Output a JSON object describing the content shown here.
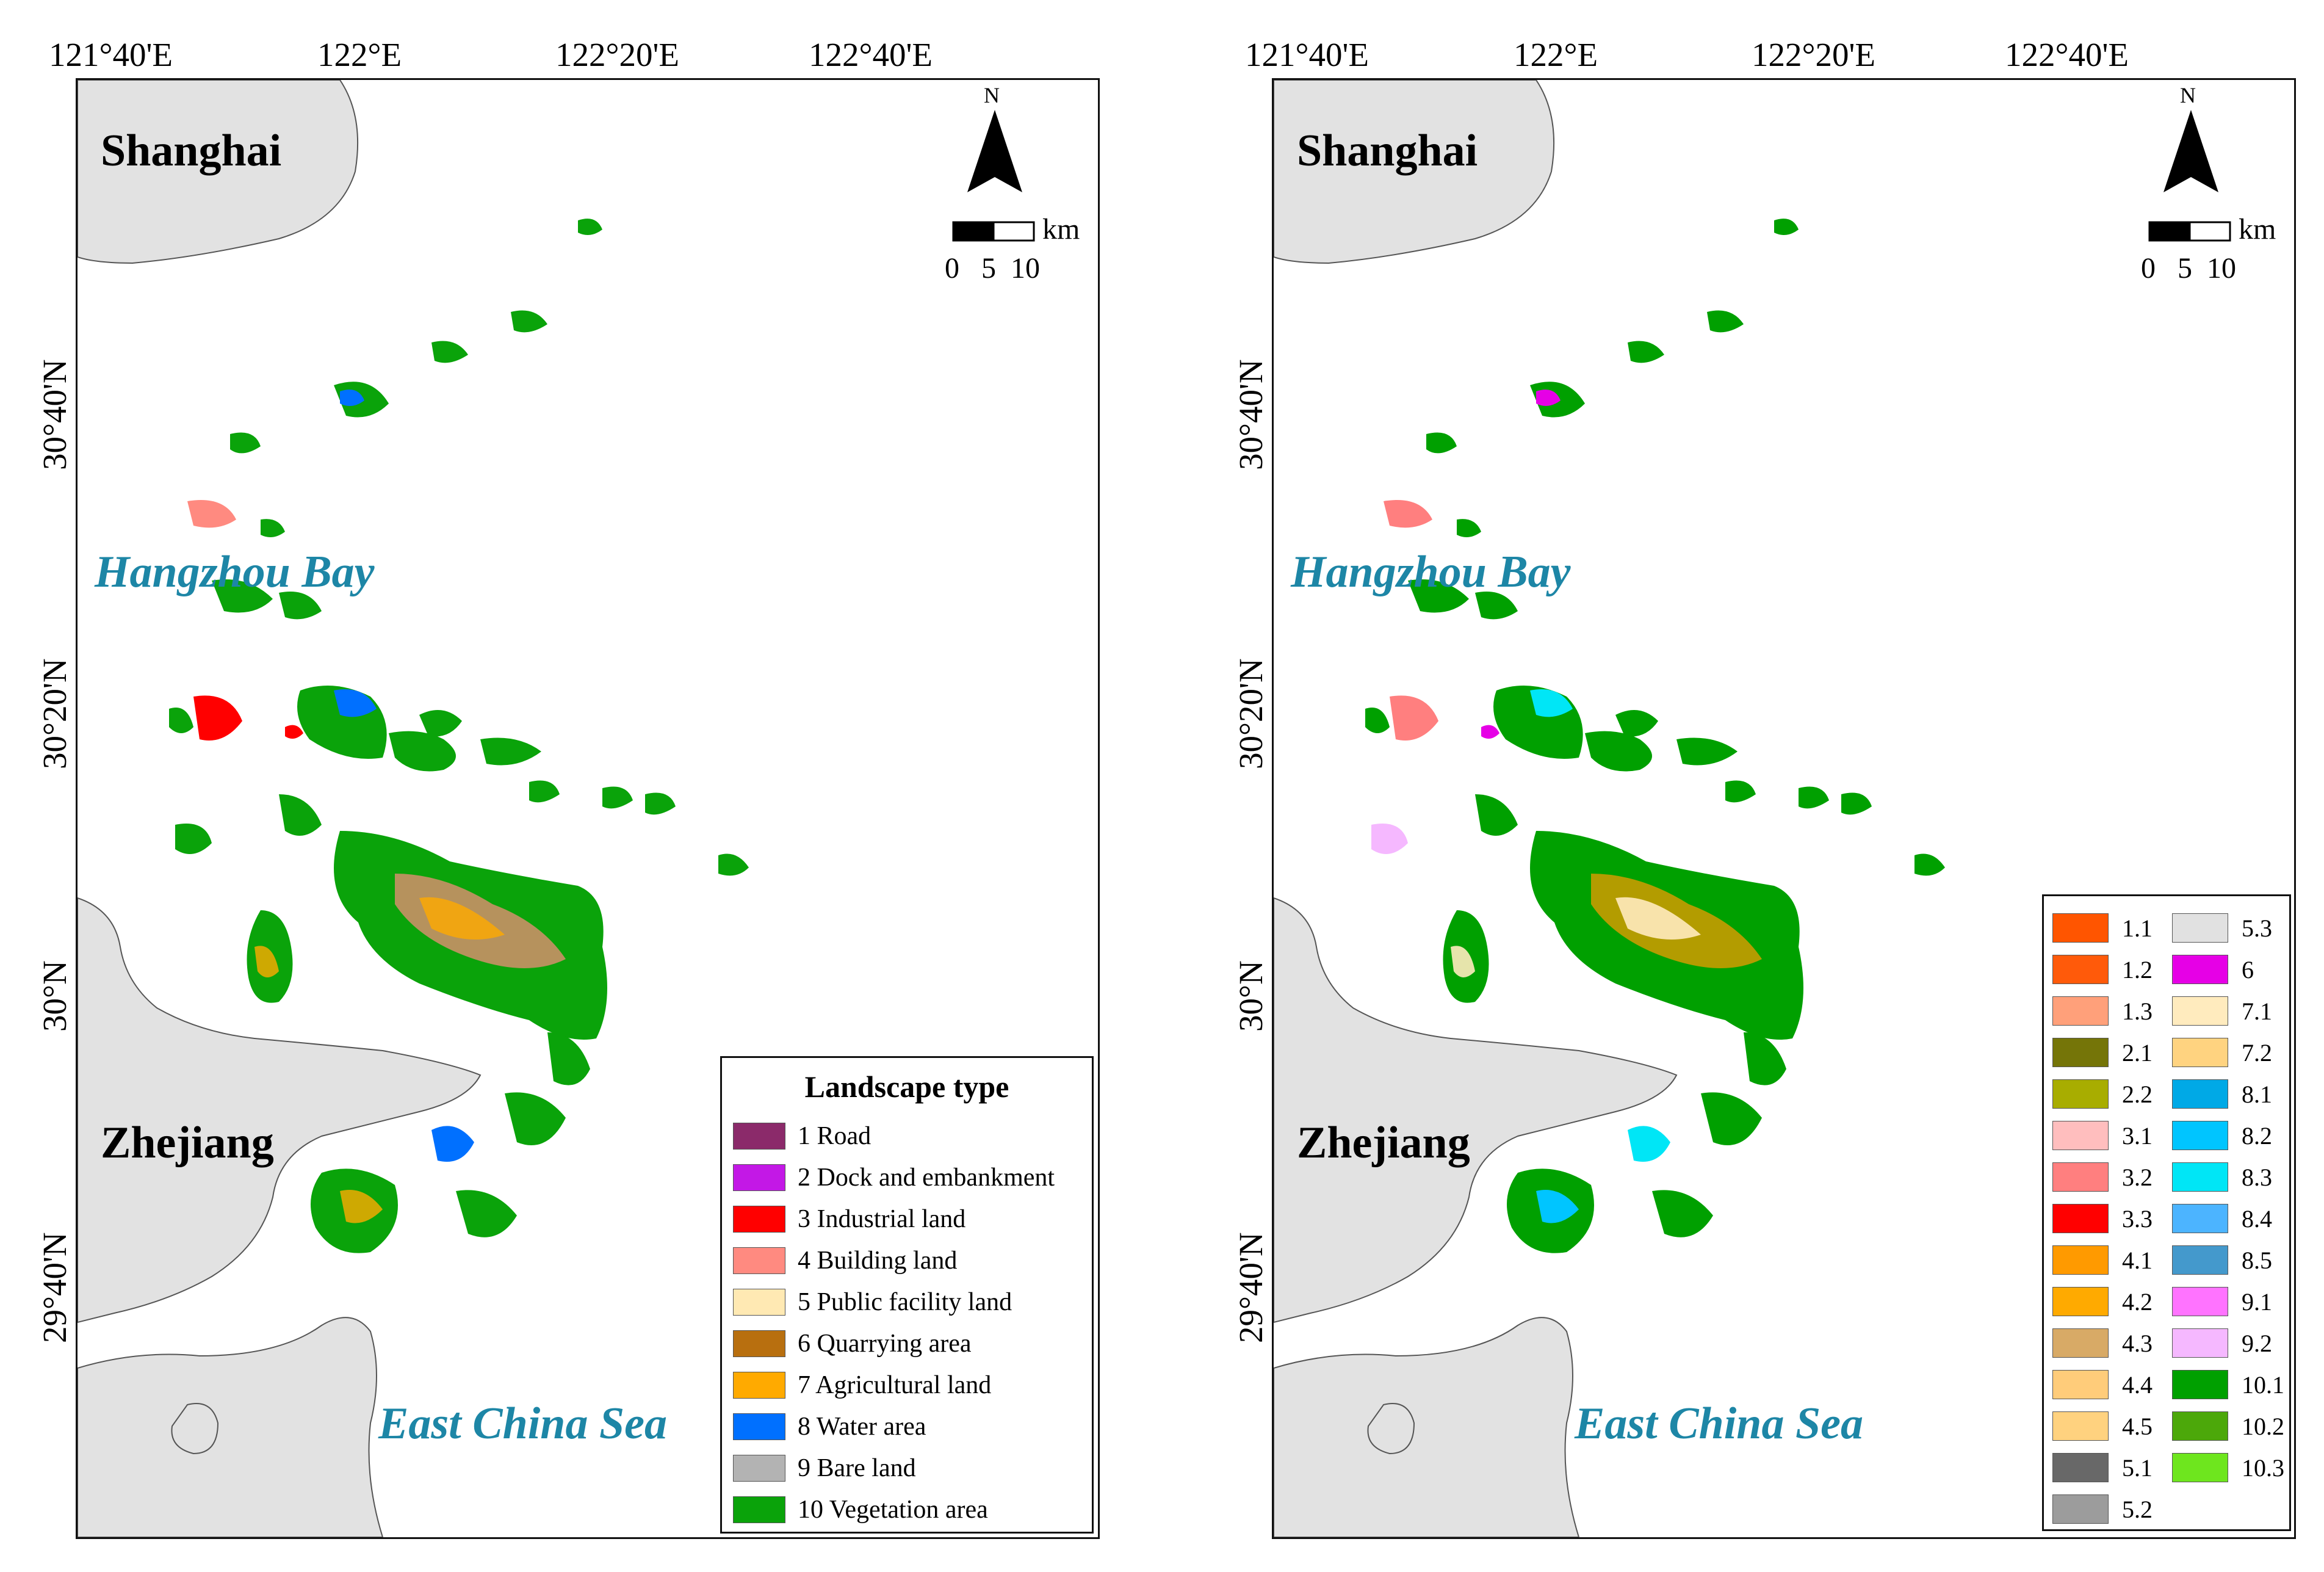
{
  "axes": {
    "lon_labels": [
      "121°40'E",
      "122°E",
      "122°20'E",
      "122°40'E"
    ],
    "lat_labels": [
      "30°40'N",
      "30°20'N",
      "30°N",
      "29°40'N"
    ]
  },
  "places": {
    "shanghai": "Shanghai",
    "zhejiang": "Zhejiang",
    "hangzhou_bay": "Hangzhou Bay",
    "east_china_sea": "East China Sea"
  },
  "north_arrow": {
    "letter": "N"
  },
  "scale_bar": {
    "unit": "km",
    "ticks": "0   5  10"
  },
  "colors": {
    "land": "#e2e2e2",
    "sea": "#ffffff",
    "sea_label": "#1d86a6",
    "vegetation": "#0aa30a"
  },
  "legend_left": {
    "title": "Landscape type",
    "items": [
      {
        "label": "1 Road",
        "color": "#8b2a6a"
      },
      {
        "label": "2 Dock and embankment",
        "color": "#c318e6"
      },
      {
        "label": "3 Industrial land",
        "color": "#ff0000"
      },
      {
        "label": "4 Building land",
        "color": "#ff8a80"
      },
      {
        "label": "5 Public facility land",
        "color": "#ffe9b3"
      },
      {
        "label": "6 Quarrying area",
        "color": "#b86f0f"
      },
      {
        "label": "7 Agricultural land",
        "color": "#ffaa00"
      },
      {
        "label": "8 Water area",
        "color": "#0070ff"
      },
      {
        "label": "9 Bare land",
        "color": "#b3b3b3"
      },
      {
        "label": "10 Vegetation area",
        "color": "#0aa30a"
      }
    ]
  },
  "legend_right": {
    "col1": [
      {
        "label": "1.1",
        "color": "#ff5500"
      },
      {
        "label": "1.2",
        "color": "#ff5a0a"
      },
      {
        "label": "1.3",
        "color": "#ffa07a"
      },
      {
        "label": "2.1",
        "color": "#757508"
      },
      {
        "label": "2.2",
        "color": "#a8ad00"
      },
      {
        "label": "3.1",
        "color": "#ffbebe"
      },
      {
        "label": "3.2",
        "color": "#ff7f7f"
      },
      {
        "label": "3.3",
        "color": "#ff0000"
      },
      {
        "label": "4.1",
        "color": "#ff9a00"
      },
      {
        "label": "4.2",
        "color": "#ffaa00"
      },
      {
        "label": "4.3",
        "color": "#d8aa66"
      },
      {
        "label": "4.4",
        "color": "#ffcc7a"
      },
      {
        "label": "4.5",
        "color": "#ffd27f"
      },
      {
        "label": "5.1",
        "color": "#686868"
      },
      {
        "label": "5.2",
        "color": "#9c9c9c"
      }
    ],
    "col2": [
      {
        "label": "5.3",
        "color": "#e1e1e1"
      },
      {
        "label": "6",
        "color": "#e600e6"
      },
      {
        "label": "7.1",
        "color": "#ffebbe"
      },
      {
        "label": "7.2",
        "color": "#ffd380"
      },
      {
        "label": "8.1",
        "color": "#00a9e6"
      },
      {
        "label": "8.2",
        "color": "#00c5ff"
      },
      {
        "label": "8.3",
        "color": "#00e6f6"
      },
      {
        "label": "8.4",
        "color": "#4cb4ff"
      },
      {
        "label": "8.5",
        "color": "#4499cc"
      },
      {
        "label": "9.1",
        "color": "#ff73ff"
      },
      {
        "label": "9.2",
        "color": "#f5b8ff"
      },
      {
        "label": "10.1",
        "color": "#00a000"
      },
      {
        "label": "10.2",
        "color": "#4ca80a"
      },
      {
        "label": "10.3",
        "color": "#6ee61e"
      }
    ]
  }
}
